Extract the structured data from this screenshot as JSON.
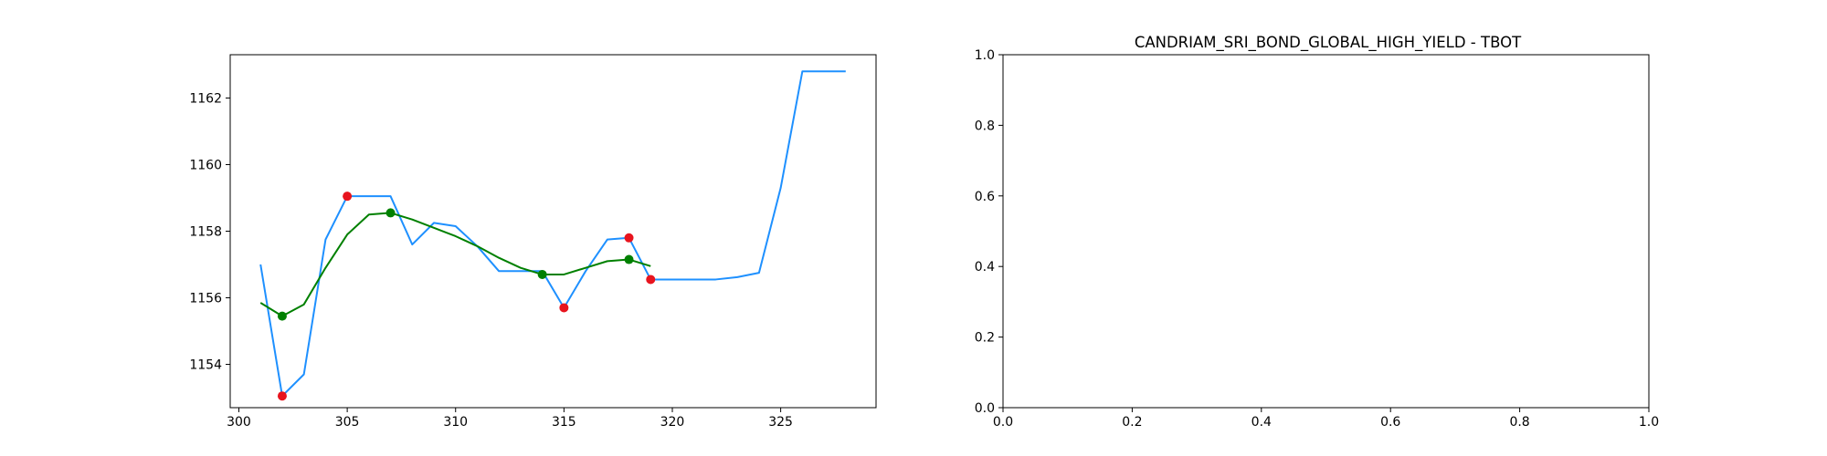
{
  "chart_data": [
    {
      "type": "line",
      "title": "",
      "xlabel": "",
      "ylabel": "",
      "xlim": [
        299.6,
        329.4
      ],
      "ylim": [
        1152.7,
        1163.3
      ],
      "xticks": [
        300,
        305,
        310,
        315,
        320,
        325
      ],
      "yticks": [
        1154,
        1156,
        1158,
        1160,
        1162
      ],
      "grid": false,
      "series": [
        {
          "role": "price",
          "color": "#1e90ff",
          "x": [
            301,
            302,
            303,
            304,
            305,
            306,
            307,
            308,
            309,
            310,
            311,
            312,
            313,
            314,
            315,
            316,
            317,
            318,
            319,
            320,
            321,
            322,
            323,
            324,
            325,
            326,
            327,
            328
          ],
          "y": [
            1157.0,
            1153.05,
            1153.7,
            1157.75,
            1159.05,
            1159.05,
            1159.05,
            1157.6,
            1158.25,
            1158.15,
            1157.55,
            1156.8,
            1156.8,
            1156.8,
            1155.7,
            1156.8,
            1157.75,
            1157.8,
            1156.55,
            1156.55,
            1156.55,
            1156.55,
            1156.62,
            1156.75,
            1159.3,
            1162.8,
            1162.8,
            1162.8
          ]
        },
        {
          "role": "smoothed",
          "color": "#008000",
          "x": [
            301,
            302,
            303,
            304,
            305,
            306,
            307,
            308,
            309,
            310,
            311,
            312,
            313,
            314,
            315,
            316,
            317,
            318,
            319
          ],
          "y": [
            1155.85,
            1155.45,
            1155.8,
            1156.9,
            1157.9,
            1158.5,
            1158.55,
            1158.35,
            1158.1,
            1157.85,
            1157.55,
            1157.2,
            1156.9,
            1156.7,
            1156.7,
            1156.9,
            1157.1,
            1157.15,
            1156.95
          ]
        },
        {
          "role": "red-markers",
          "color": "#e8141e",
          "x": [
            302,
            305,
            315,
            318,
            319
          ],
          "y": [
            1153.05,
            1159.05,
            1155.7,
            1157.8,
            1156.55
          ]
        },
        {
          "role": "green-markers",
          "color": "#008000",
          "x": [
            302,
            307,
            314,
            318
          ],
          "y": [
            1155.45,
            1158.55,
            1156.7,
            1157.15
          ]
        }
      ]
    },
    {
      "type": "line",
      "title": "CANDRIAM_SRI_BOND_GLOBAL_HIGH_YIELD - TBOT",
      "xlabel": "",
      "ylabel": "",
      "xlim": [
        0,
        1
      ],
      "ylim": [
        0,
        1
      ],
      "xticks": [
        "0.0",
        "0.2",
        "0.4",
        "0.6",
        "0.8",
        "1.0"
      ],
      "yticks": [
        "0.0",
        "0.2",
        "0.4",
        "0.6",
        "0.8",
        "1.0"
      ],
      "grid": false,
      "series": []
    }
  ]
}
